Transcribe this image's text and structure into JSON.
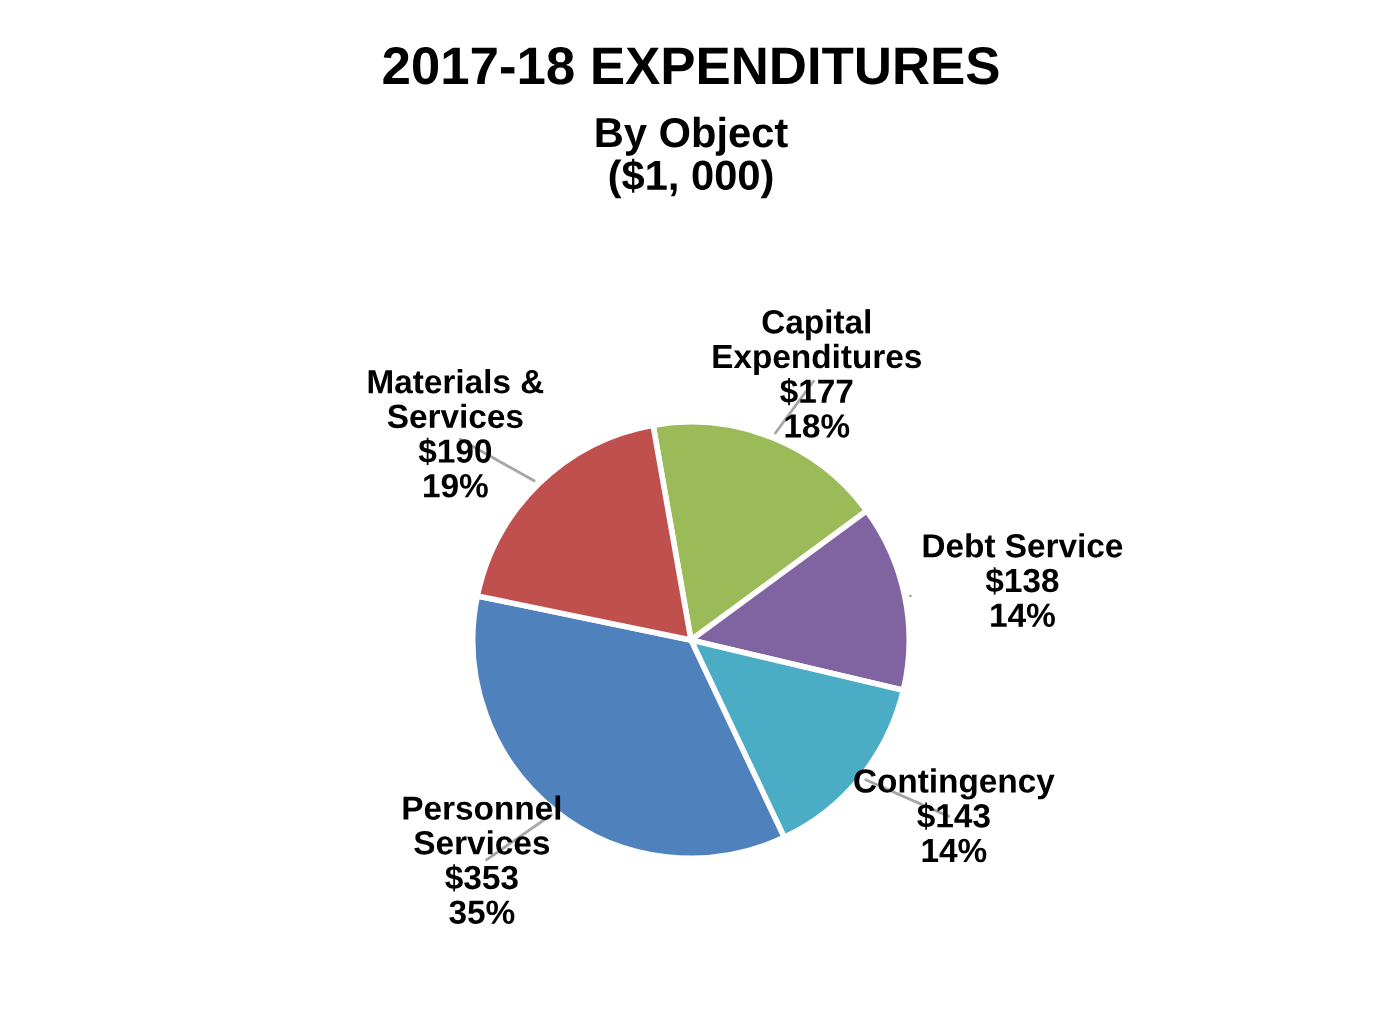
{
  "chart_data": {
    "type": "pie",
    "title": "2017-18 EXPENDITURES",
    "subtitle": "By Object\n($1, 000)",
    "categories": [
      "Capital\nExpenditures",
      "Debt Service",
      "Contingency",
      "Personnel\nServices",
      "Materials &\nServices"
    ],
    "values": [
      177,
      138,
      143,
      353,
      190
    ],
    "colors": [
      "#9bbb59",
      "#8064a2",
      "#4bacc6",
      "#4f81bd",
      "#c0504d"
    ],
    "value_labels": [
      "$177\n18%",
      "$138\n14%",
      "$143\n14%",
      "$353\n35%",
      "$190\n19%"
    ],
    "legend": false
  }
}
